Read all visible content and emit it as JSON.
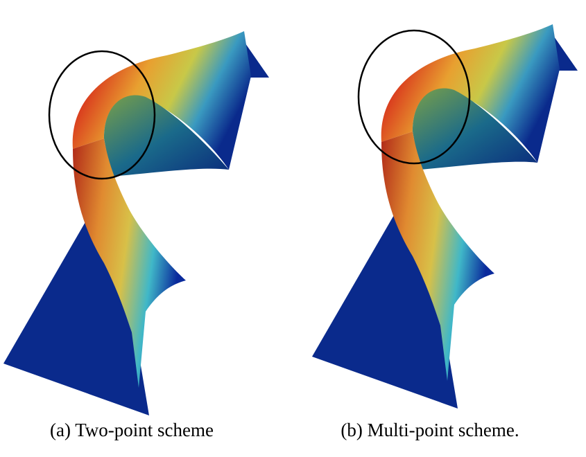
{
  "panels": [
    {
      "caption": "(a) Two-point scheme"
    },
    {
      "caption": "(b) Multi-point scheme."
    }
  ]
}
